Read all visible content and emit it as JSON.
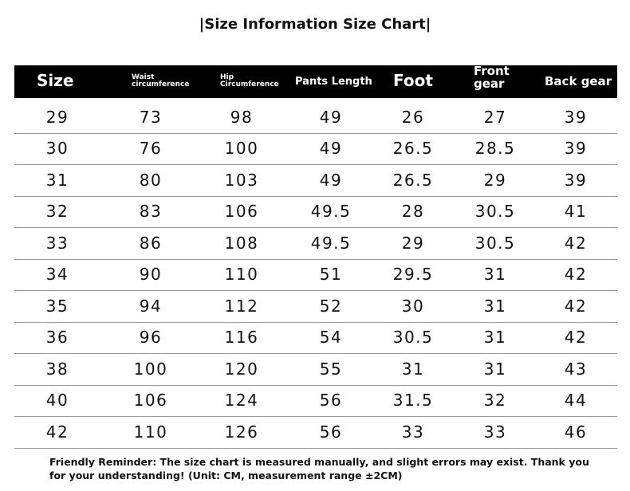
{
  "title": "|Size Information Size Chart|",
  "table": {
    "header": [
      "Size",
      "Waist circumference",
      "Hip Circumference",
      "Pants Length",
      "Foot",
      "Front gear",
      "Back gear"
    ],
    "rows": [
      [
        "29",
        "73",
        "98",
        "49",
        "26",
        "27",
        "39"
      ],
      [
        "30",
        "76",
        "100",
        "49",
        "26.5",
        "28.5",
        "39"
      ],
      [
        "31",
        "80",
        "103",
        "49",
        "26.5",
        "29",
        "39"
      ],
      [
        "32",
        "83",
        "106",
        "49.5",
        "28",
        "30.5",
        "41"
      ],
      [
        "33",
        "86",
        "108",
        "49.5",
        "29",
        "30.5",
        "42"
      ],
      [
        "34",
        "90",
        "110",
        "51",
        "29.5",
        "31",
        "42"
      ],
      [
        "35",
        "94",
        "112",
        "52",
        "30",
        "31",
        "42"
      ],
      [
        "36",
        "96",
        "116",
        "54",
        "30.5",
        "31",
        "42"
      ],
      [
        "38",
        "100",
        "120",
        "55",
        "31",
        "31",
        "43"
      ],
      [
        "40",
        "106",
        "124",
        "56",
        "31.5",
        "32",
        "44"
      ],
      [
        "42",
        "110",
        "126",
        "56",
        "33",
        "33",
        "46"
      ]
    ]
  },
  "footer": "Friendly Reminder: The size chart is measured manually, and slight errors may exist. Thank you for your understanding! (Unit: CM, measurement range ±2CM)"
}
